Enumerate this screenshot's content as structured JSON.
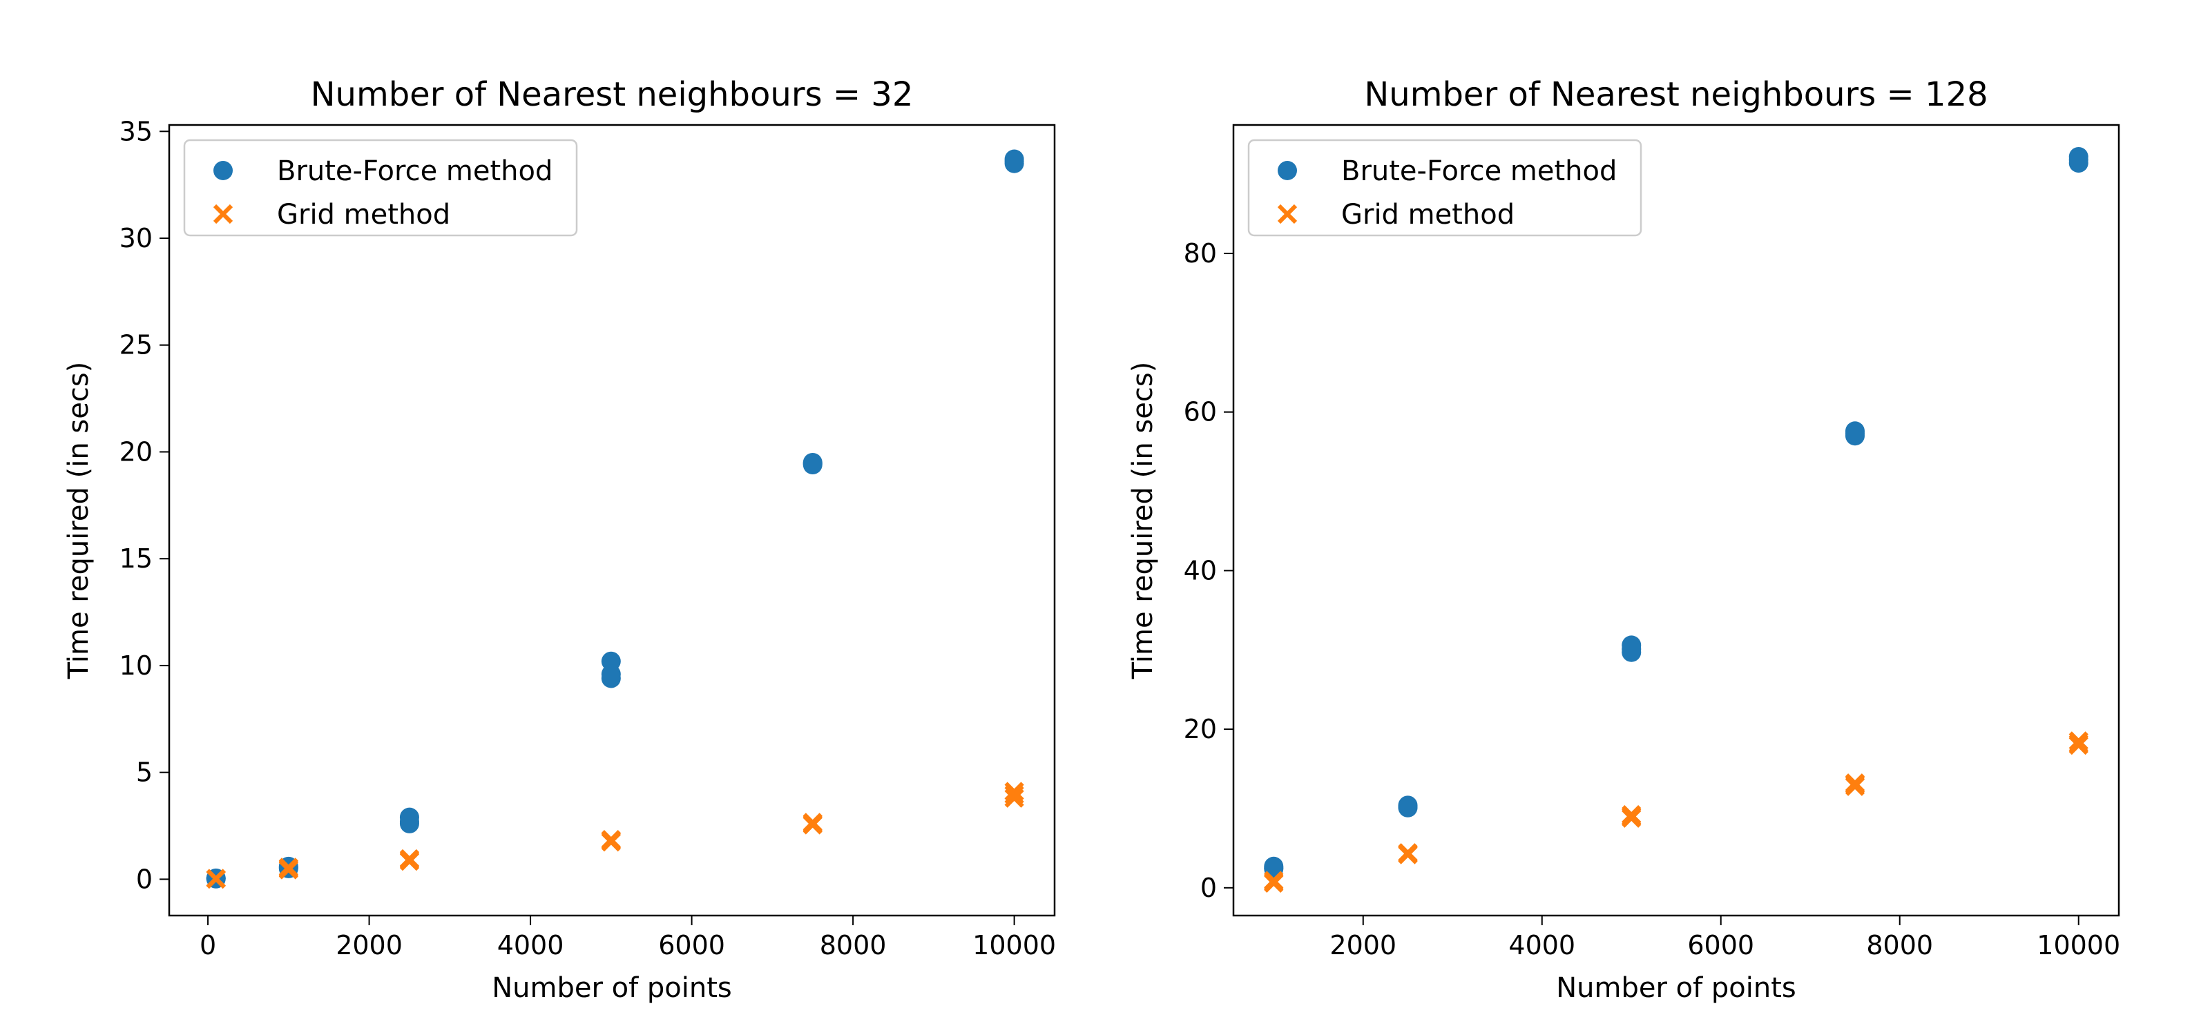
{
  "chart_data": [
    {
      "type": "scatter",
      "title": "Number of Nearest neighbours = 32",
      "xlabel": "Number of points",
      "ylabel": "Time required (in secs)",
      "xlim": [
        -480,
        10500
      ],
      "ylim": [
        -1.7,
        35.3
      ],
      "xticks": [
        0,
        2000,
        4000,
        6000,
        8000,
        10000
      ],
      "xtick_labels": [
        "0",
        "2000",
        "4000",
        "6000",
        "8000",
        "10000"
      ],
      "yticks": [
        0,
        5,
        10,
        15,
        20,
        25,
        30,
        35
      ],
      "ytick_labels": [
        "0",
        "5",
        "10",
        "15",
        "20",
        "25",
        "30",
        "35"
      ],
      "grid": false,
      "legend_position": "top-left",
      "series": [
        {
          "name": "Brute-Force method",
          "marker": "circle",
          "color": "#1f77b4",
          "points": [
            [
              100,
              0.02
            ],
            [
              100,
              0.05
            ],
            [
              100,
              0.03
            ],
            [
              1000,
              0.5
            ],
            [
              1000,
              0.6
            ],
            [
              1000,
              0.55
            ],
            [
              2500,
              2.6
            ],
            [
              2500,
              2.9
            ],
            [
              2500,
              2.7
            ],
            [
              5000,
              9.4
            ],
            [
              5000,
              10.2
            ],
            [
              5000,
              9.6
            ],
            [
              7500,
              19.4
            ],
            [
              7500,
              19.5
            ],
            [
              7500,
              19.45
            ],
            [
              10000,
              33.5
            ],
            [
              10000,
              33.7
            ],
            [
              10000,
              33.6
            ]
          ]
        },
        {
          "name": "Grid method",
          "marker": "x",
          "color": "#ff7f0e",
          "points": [
            [
              100,
              0.01
            ],
            [
              100,
              0.03
            ],
            [
              100,
              0.02
            ],
            [
              1000,
              0.45
            ],
            [
              1000,
              0.55
            ],
            [
              1000,
              0.5
            ],
            [
              2500,
              0.85
            ],
            [
              2500,
              0.95
            ],
            [
              2500,
              0.9
            ],
            [
              5000,
              1.75
            ],
            [
              5000,
              1.85
            ],
            [
              5000,
              1.8
            ],
            [
              7500,
              2.55
            ],
            [
              7500,
              2.65
            ],
            [
              7500,
              2.6
            ],
            [
              10000,
              3.8
            ],
            [
              10000,
              4.1
            ],
            [
              10000,
              3.95
            ]
          ]
        }
      ]
    },
    {
      "type": "scatter",
      "title": "Number of Nearest neighbours = 128",
      "xlabel": "Number of points",
      "ylabel": "Time required (in secs)",
      "xlim": [
        550,
        10450
      ],
      "ylim": [
        -3.5,
        96.2
      ],
      "xticks": [
        2000,
        4000,
        6000,
        8000,
        10000
      ],
      "xtick_labels": [
        "2000",
        "4000",
        "6000",
        "8000",
        "10000"
      ],
      "yticks": [
        0,
        20,
        40,
        60,
        80
      ],
      "ytick_labels": [
        "0",
        "20",
        "40",
        "60",
        "80"
      ],
      "grid": false,
      "legend_position": "top-left",
      "series": [
        {
          "name": "Brute-Force method",
          "marker": "circle",
          "color": "#1f77b4",
          "points": [
            [
              1000,
              2.4
            ],
            [
              1000,
              2.7
            ],
            [
              1000,
              2.5
            ],
            [
              2500,
              10.1
            ],
            [
              2500,
              10.4
            ],
            [
              2500,
              10.2
            ],
            [
              5000,
              29.7
            ],
            [
              5000,
              30.6
            ],
            [
              5000,
              30.1
            ],
            [
              7500,
              57.0
            ],
            [
              7500,
              57.6
            ],
            [
              7500,
              57.3
            ],
            [
              10000,
              91.4
            ],
            [
              10000,
              92.2
            ],
            [
              10000,
              91.8
            ]
          ]
        },
        {
          "name": "Grid method",
          "marker": "x",
          "color": "#ff7f0e",
          "points": [
            [
              1000,
              0.6
            ],
            [
              1000,
              0.9
            ],
            [
              1000,
              0.75
            ],
            [
              2500,
              4.2
            ],
            [
              2500,
              4.4
            ],
            [
              2500,
              4.3
            ],
            [
              5000,
              8.8
            ],
            [
              5000,
              9.2
            ],
            [
              5000,
              9.0
            ],
            [
              7500,
              12.8
            ],
            [
              7500,
              13.2
            ],
            [
              7500,
              13.0
            ],
            [
              10000,
              18.0
            ],
            [
              10000,
              18.5
            ],
            [
              10000,
              18.2
            ]
          ]
        }
      ]
    }
  ]
}
